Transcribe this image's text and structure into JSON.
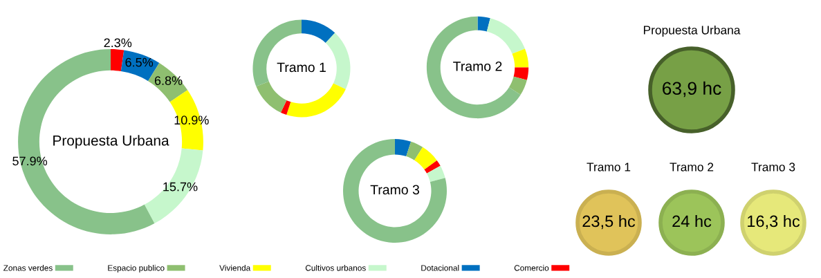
{
  "chart_data": [
    {
      "type": "donut",
      "title": "Propuesta Urbana",
      "categories": [
        null,
        null,
        null,
        null,
        null,
        null
      ],
      "values": [
        2.3,
        6.5,
        6.8,
        10.9,
        15.7,
        57.9
      ],
      "value_labels": [
        "2.3%",
        "6.5%",
        "6.8%",
        "10.9%",
        "15.7%",
        "57.9%"
      ],
      "colors": [
        "#ff0000",
        "#0070c0",
        "#8fbf70",
        "#ffff00",
        "#c6f7cc",
        "#88c28a"
      ]
    },
    {
      "type": "donut",
      "title": "Tramo 1",
      "categories": [
        null,
        null,
        null,
        null,
        null,
        null
      ],
      "values": [
        12,
        20,
        23,
        2,
        12,
        31
      ],
      "colors": [
        "#0070c0",
        "#c6f7cc",
        "#ffff00",
        "#ff0000",
        "#8fbf70",
        "#88c28a"
      ]
    },
    {
      "type": "donut",
      "title": "Tramo 2",
      "categories": [
        null,
        null,
        null,
        null,
        null,
        null
      ],
      "values": [
        4,
        15,
        6,
        4,
        5,
        66
      ],
      "colors": [
        "#0070c0",
        "#c6f7cc",
        "#ffff00",
        "#ff0000",
        "#8fbf70",
        "#88c28a"
      ]
    },
    {
      "type": "donut",
      "title": "Tramo 3",
      "categories": [
        null,
        null,
        null,
        null,
        null,
        null
      ],
      "values": [
        5,
        4,
        6,
        2,
        4,
        79
      ],
      "colors": [
        "#0070c0",
        "#8fbf70",
        "#ffff00",
        "#ff0000",
        "#c6f7cc",
        "#88c28a"
      ]
    },
    {
      "type": "other",
      "categories": [
        "Propuesta Urbana",
        "Tramo 1",
        "Tramo 2",
        "Tramo 3"
      ],
      "values": [
        63.9,
        23.5,
        24,
        16.3
      ],
      "value_labels": [
        "63,9 hc",
        "23,5 hc",
        "24 hc",
        "16,3 hc"
      ],
      "colors": [
        "#77a046",
        "#e0c35a",
        "#9cc45a",
        "#e6e87a"
      ]
    },
    {
      "type": "other",
      "categories": [
        "Zonas verdes",
        "Espacio publico",
        "Vivienda",
        "Cultivos urbanos",
        "Dotacional",
        "Comercio"
      ],
      "colors": [
        "#88c28a",
        "#8fbf70",
        "#ffff00",
        "#c6f7cc",
        "#0070c0",
        "#ff0000"
      ]
    }
  ]
}
